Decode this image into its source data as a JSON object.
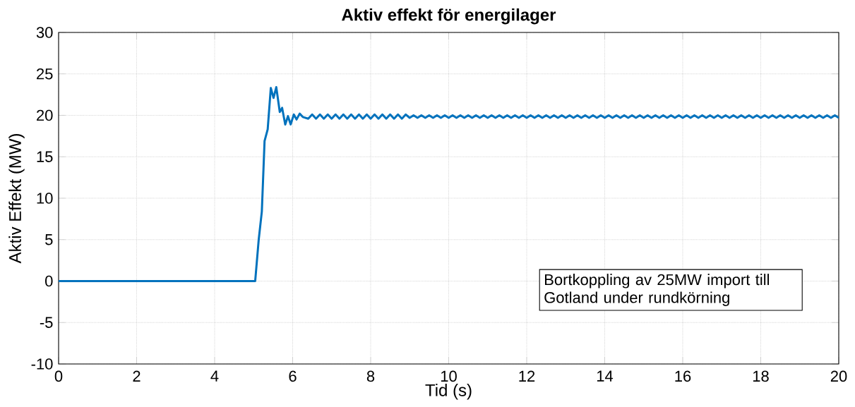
{
  "chart_data": {
    "type": "line",
    "title": "Aktiv effekt för energilager",
    "xlabel": "Tid (s)",
    "ylabel": "Aktiv Effekt (MW)",
    "xlim": [
      0,
      20
    ],
    "ylim": [
      -10,
      30
    ],
    "xticks": [
      0,
      2,
      4,
      6,
      8,
      10,
      12,
      14,
      16,
      18,
      20
    ],
    "yticks": [
      -10,
      -5,
      0,
      5,
      10,
      15,
      20,
      25,
      30
    ],
    "grid": true,
    "annotations": [
      "Bortkoppling av 25MW import till Gotland under rundkörning"
    ],
    "series": [
      {
        "color": "#0072bd",
        "x": [
          0,
          5.04,
          5.13,
          5.21,
          5.28,
          5.36,
          5.44,
          5.51,
          5.58,
          5.67,
          5.73,
          5.81,
          5.88,
          5.95,
          6.03,
          6.1,
          6.18,
          6.26,
          6.4,
          6.5,
          6.6,
          6.7,
          6.8,
          6.9,
          7.0,
          7.1,
          7.2,
          7.3,
          7.4,
          7.5,
          7.6,
          7.7,
          7.8,
          7.9,
          8.0,
          8.1,
          8.2,
          8.3,
          8.4,
          8.5,
          8.6,
          8.7,
          8.8,
          8.9,
          9.0,
          9.1,
          9.2,
          9.3,
          9.4,
          9.5,
          9.6,
          9.7,
          9.8,
          9.9,
          10.0,
          10.1,
          10.2,
          10.3,
          10.4,
          10.5,
          10.6,
          10.7,
          10.8,
          10.9,
          11.0,
          11.1,
          11.2,
          11.3,
          11.4,
          11.5,
          11.6,
          11.7,
          11.8,
          11.9,
          12.0,
          12.1,
          12.2,
          12.3,
          12.4,
          12.5,
          12.6,
          12.7,
          12.8,
          12.9,
          13.0,
          13.1,
          13.2,
          13.3,
          13.4,
          13.5,
          13.6,
          13.7,
          13.8,
          13.9,
          14.0,
          14.1,
          14.2,
          14.3,
          14.4,
          14.5,
          14.6,
          14.7,
          14.8,
          14.9,
          15.0,
          15.1,
          15.2,
          15.3,
          15.4,
          15.5,
          15.6,
          15.7,
          15.8,
          15.9,
          16.0,
          16.1,
          16.2,
          16.3,
          16.4,
          16.5,
          16.6,
          16.7,
          16.8,
          16.9,
          17.0,
          17.1,
          17.2,
          17.3,
          17.4,
          17.5,
          17.6,
          17.7,
          17.8,
          17.9,
          18.0,
          18.1,
          18.2,
          18.3,
          18.4,
          18.5,
          18.6,
          18.7,
          18.8,
          18.9,
          19.0,
          19.1,
          19.2,
          19.3,
          19.4,
          19.5,
          19.6,
          19.7,
          19.8,
          19.9,
          20.0
        ],
        "values": [
          0,
          0,
          5,
          8.4,
          16.9,
          18.3,
          23.3,
          22.1,
          23.4,
          20.4,
          20.9,
          18.9,
          19.9,
          18.9,
          20.1,
          19.5,
          20.2,
          19.8,
          19.6,
          20.1,
          19.6,
          20.1,
          19.6,
          20.1,
          19.6,
          20.1,
          19.6,
          20.1,
          19.6,
          20.1,
          19.6,
          20.1,
          19.6,
          20.1,
          19.6,
          20.1,
          19.6,
          20.1,
          19.6,
          20.1,
          19.6,
          20.1,
          19.6,
          20.1,
          19.7,
          20.0,
          19.7,
          20.0,
          19.7,
          20.0,
          19.7,
          20.0,
          19.7,
          20.0,
          19.7,
          20.0,
          19.7,
          20.0,
          19.7,
          20.0,
          19.7,
          20.0,
          19.7,
          20.0,
          19.7,
          20.0,
          19.7,
          20.0,
          19.7,
          20.0,
          19.7,
          20.0,
          19.7,
          20.0,
          19.7,
          20.0,
          19.7,
          20.0,
          19.7,
          20.0,
          19.7,
          20.0,
          19.7,
          20.0,
          19.7,
          20.0,
          19.7,
          20.0,
          19.7,
          20.0,
          19.7,
          20.0,
          19.7,
          20.0,
          19.7,
          20.0,
          19.7,
          20.0,
          19.7,
          20.0,
          19.7,
          20.0,
          19.7,
          20.0,
          19.7,
          20.0,
          19.7,
          20.0,
          19.7,
          20.0,
          19.7,
          20.0,
          19.7,
          20.0,
          19.7,
          20.0,
          19.7,
          20.0,
          19.7,
          20.0,
          19.7,
          20.0,
          19.7,
          20.0,
          19.7,
          20.0,
          19.7,
          20.0,
          19.7,
          20.0,
          19.7,
          20.0,
          19.7,
          20.0,
          19.7,
          20.0,
          19.7,
          20.0,
          19.7,
          20.0,
          19.7,
          20.0,
          19.7,
          20.0,
          19.7,
          20.0,
          19.7,
          20.0,
          19.7,
          20.0,
          19.7,
          20.0,
          19.7,
          20.0,
          19.7
        ]
      }
    ]
  }
}
